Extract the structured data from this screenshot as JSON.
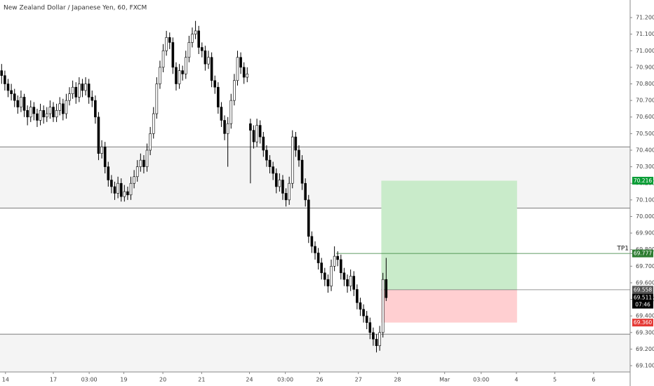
{
  "chart_data": {
    "type": "candlestick",
    "title": "New Zealand Dollar / Japanese Yen, 60, FXCM",
    "up_color": "#ffffff",
    "down_color": "#000000",
    "wick_color": "#000000",
    "ohlc": [
      [
        70.88,
        70.92,
        70.8,
        70.85
      ],
      [
        70.85,
        70.88,
        70.76,
        70.8
      ],
      [
        70.8,
        70.83,
        70.72,
        70.76
      ],
      [
        70.76,
        70.8,
        70.7,
        70.74
      ],
      [
        70.74,
        70.77,
        70.66,
        70.7
      ],
      [
        70.7,
        70.73,
        70.62,
        70.66
      ],
      [
        70.66,
        70.76,
        70.63,
        70.72
      ],
      [
        70.72,
        70.74,
        70.6,
        70.64
      ],
      [
        70.64,
        70.67,
        70.55,
        70.6
      ],
      [
        70.6,
        70.7,
        70.57,
        70.66
      ],
      [
        70.66,
        70.69,
        70.58,
        70.62
      ],
      [
        70.62,
        70.65,
        70.54,
        70.58
      ],
      [
        70.58,
        70.68,
        70.55,
        70.64
      ],
      [
        70.64,
        70.67,
        70.56,
        70.6
      ],
      [
        70.6,
        70.66,
        70.57,
        70.62
      ],
      [
        70.62,
        70.7,
        70.59,
        70.66
      ],
      [
        70.66,
        70.69,
        70.57,
        70.6
      ],
      [
        70.6,
        70.68,
        70.57,
        70.64
      ],
      [
        70.64,
        70.72,
        70.61,
        70.68
      ],
      [
        70.68,
        70.71,
        70.58,
        70.62
      ],
      [
        70.62,
        70.74,
        70.59,
        70.7
      ],
      [
        70.7,
        70.78,
        70.67,
        70.74
      ],
      [
        70.74,
        70.82,
        70.71,
        70.78
      ],
      [
        70.78,
        70.81,
        70.68,
        70.72
      ],
      [
        70.72,
        70.84,
        70.69,
        70.8
      ],
      [
        70.8,
        70.83,
        70.72,
        70.76
      ],
      [
        70.76,
        70.84,
        70.73,
        70.8
      ],
      [
        70.8,
        70.83,
        70.68,
        70.72
      ],
      [
        70.72,
        70.76,
        70.66,
        70.7
      ],
      [
        70.7,
        70.73,
        70.56,
        70.6
      ],
      [
        70.6,
        70.63,
        70.34,
        70.38
      ],
      [
        70.38,
        70.46,
        70.35,
        70.42
      ],
      [
        70.42,
        70.45,
        70.26,
        70.3
      ],
      [
        70.3,
        70.33,
        70.18,
        70.22
      ],
      [
        70.22,
        70.25,
        70.14,
        70.18
      ],
      [
        70.18,
        70.21,
        70.1,
        70.14
      ],
      [
        70.14,
        70.24,
        70.11,
        70.2
      ],
      [
        70.2,
        70.23,
        70.09,
        70.12
      ],
      [
        70.12,
        70.19,
        70.09,
        70.15
      ],
      [
        70.15,
        70.18,
        70.1,
        70.13
      ],
      [
        70.13,
        70.24,
        70.1,
        70.2
      ],
      [
        70.2,
        70.28,
        70.17,
        70.24
      ],
      [
        70.24,
        70.34,
        70.21,
        70.3
      ],
      [
        70.3,
        70.38,
        70.27,
        70.34
      ],
      [
        70.34,
        70.37,
        70.26,
        70.3
      ],
      [
        70.3,
        70.44,
        70.27,
        70.4
      ],
      [
        70.4,
        70.54,
        70.37,
        70.5
      ],
      [
        70.5,
        70.66,
        70.47,
        70.62
      ],
      [
        70.62,
        70.84,
        70.59,
        70.8
      ],
      [
        70.8,
        70.94,
        70.77,
        70.9
      ],
      [
        70.9,
        71.04,
        70.87,
        71.0
      ],
      [
        71.0,
        71.12,
        70.97,
        71.08
      ],
      [
        71.08,
        71.11,
        71.01,
        71.05
      ],
      [
        71.05,
        71.08,
        70.86,
        70.9
      ],
      [
        70.9,
        70.93,
        70.76,
        70.8
      ],
      [
        70.8,
        70.92,
        70.77,
        70.88
      ],
      [
        70.88,
        70.91,
        70.82,
        70.86
      ],
      [
        70.86,
        71.0,
        70.83,
        70.96
      ],
      [
        70.96,
        71.09,
        70.93,
        71.05
      ],
      [
        71.05,
        71.14,
        71.02,
        71.1
      ],
      [
        71.1,
        71.18,
        71.07,
        71.12
      ],
      [
        71.12,
        71.15,
        70.98,
        71.02
      ],
      [
        71.02,
        71.05,
        70.96,
        71.0
      ],
      [
        71.0,
        71.03,
        70.88,
        70.92
      ],
      [
        70.92,
        71.0,
        70.89,
        70.96
      ],
      [
        70.96,
        70.99,
        70.78,
        70.82
      ],
      [
        70.82,
        70.85,
        70.74,
        70.78
      ],
      [
        70.78,
        70.81,
        70.62,
        70.66
      ],
      [
        70.66,
        70.69,
        70.54,
        70.58
      ],
      [
        70.58,
        70.61,
        70.46,
        70.5
      ],
      [
        70.5,
        70.6,
        70.3,
        70.56
      ],
      [
        70.56,
        70.74,
        70.53,
        70.7
      ],
      [
        70.7,
        70.86,
        70.67,
        70.82
      ],
      [
        70.82,
        71.0,
        70.79,
        70.96
      ],
      [
        70.96,
        70.99,
        70.86,
        70.9
      ],
      [
        70.9,
        70.93,
        70.8,
        70.84
      ],
      [
        70.84,
        70.9,
        70.81,
        70.86
      ],
      [
        70.56,
        70.59,
        70.2,
        70.52
      ],
      [
        70.52,
        70.55,
        70.41,
        70.45
      ],
      [
        70.45,
        70.59,
        70.42,
        70.55
      ],
      [
        70.55,
        70.58,
        70.44,
        70.48
      ],
      [
        70.48,
        70.51,
        70.36,
        70.4
      ],
      [
        70.4,
        70.43,
        70.3,
        70.34
      ],
      [
        70.34,
        70.37,
        70.26,
        70.3
      ],
      [
        70.3,
        70.33,
        70.22,
        70.26
      ],
      [
        70.26,
        70.29,
        70.14,
        70.18
      ],
      [
        70.18,
        70.26,
        70.15,
        70.22
      ],
      [
        70.22,
        70.25,
        70.1,
        70.14
      ],
      [
        70.14,
        70.17,
        70.06,
        70.1
      ],
      [
        70.1,
        70.24,
        70.07,
        70.2
      ],
      [
        70.2,
        70.52,
        70.17,
        70.48
      ],
      [
        70.48,
        70.51,
        70.36,
        70.4
      ],
      [
        70.4,
        70.43,
        70.3,
        70.34
      ],
      [
        70.34,
        70.37,
        70.16,
        70.2
      ],
      [
        70.2,
        70.23,
        70.06,
        70.1
      ],
      [
        70.1,
        70.13,
        69.84,
        69.88
      ],
      [
        69.88,
        69.91,
        69.78,
        69.82
      ],
      [
        69.82,
        69.85,
        69.74,
        69.78
      ],
      [
        69.78,
        69.81,
        69.68,
        69.72
      ],
      [
        69.72,
        69.75,
        69.62,
        69.66
      ],
      [
        69.66,
        69.69,
        69.58,
        69.62
      ],
      [
        69.62,
        69.65,
        69.54,
        69.58
      ],
      [
        69.58,
        69.74,
        69.55,
        69.7
      ],
      [
        69.7,
        69.82,
        69.67,
        69.76
      ],
      [
        69.76,
        69.79,
        69.7,
        69.74
      ],
      [
        69.74,
        69.77,
        69.62,
        69.66
      ],
      [
        69.66,
        69.69,
        69.58,
        69.62
      ],
      [
        69.62,
        69.65,
        69.54,
        69.58
      ],
      [
        69.58,
        69.68,
        69.55,
        69.64
      ],
      [
        69.64,
        69.67,
        69.52,
        69.56
      ],
      [
        69.56,
        69.59,
        69.44,
        69.48
      ],
      [
        69.48,
        69.51,
        69.4,
        69.44
      ],
      [
        69.44,
        69.47,
        69.36,
        69.4
      ],
      [
        69.4,
        69.43,
        69.32,
        69.36
      ],
      [
        69.36,
        69.39,
        69.26,
        69.3
      ],
      [
        69.3,
        69.33,
        69.22,
        69.26
      ],
      [
        69.26,
        69.29,
        69.18,
        69.22
      ],
      [
        69.22,
        69.34,
        69.19,
        69.3
      ],
      [
        69.3,
        69.66,
        69.27,
        69.62
      ],
      [
        69.62,
        69.75,
        69.49,
        69.51
      ]
    ],
    "xlim": [
      0,
      195
    ],
    "xticks": [
      {
        "value": 1.7,
        "label": "14"
      },
      {
        "value": 16.5,
        "label": "17"
      },
      {
        "value": 27.6,
        "label": "03:00"
      },
      {
        "value": 38.3,
        "label": "19"
      },
      {
        "value": 50.4,
        "label": "20"
      },
      {
        "value": 62.4,
        "label": "21"
      },
      {
        "value": 77.2,
        "label": "24"
      },
      {
        "value": 88.3,
        "label": "03:00"
      },
      {
        "value": 98.9,
        "label": "26"
      },
      {
        "value": 110.9,
        "label": "27"
      },
      {
        "value": 123,
        "label": "28"
      },
      {
        "value": 137.6,
        "label": "Mar"
      },
      {
        "value": 148.9,
        "label": "03:00"
      },
      {
        "value": 159.8,
        "label": "4"
      },
      {
        "value": 171.7,
        "label": "5"
      },
      {
        "value": 183.7,
        "label": "6"
      }
    ],
    "ylim": [
      69.062,
      71.306
    ],
    "yticks": [
      {
        "value": 69.1,
        "label": "69.100"
      },
      {
        "value": 69.2,
        "label": "69.200"
      },
      {
        "value": 69.3,
        "label": "69.300"
      },
      {
        "value": 69.4,
        "label": "69.400"
      },
      {
        "value": 69.5,
        "label": "69.500"
      },
      {
        "value": 69.6,
        "label": "69.600"
      },
      {
        "value": 69.7,
        "label": "69.700"
      },
      {
        "value": 69.8,
        "label": "69.800"
      },
      {
        "value": 69.9,
        "label": "69.900"
      },
      {
        "value": 70.0,
        "label": "70.000"
      },
      {
        "value": 70.1,
        "label": "70.100"
      },
      {
        "value": 70.2,
        "label": "70.200"
      },
      {
        "value": 70.3,
        "label": "70.300"
      },
      {
        "value": 70.4,
        "label": "70.400"
      },
      {
        "value": 70.5,
        "label": "70.500"
      },
      {
        "value": 70.6,
        "label": "70.600"
      },
      {
        "value": 70.7,
        "label": "70.700"
      },
      {
        "value": 70.8,
        "label": "70.800"
      },
      {
        "value": 70.9,
        "label": "70.900"
      },
      {
        "value": 71.0,
        "label": "71.000"
      },
      {
        "value": 71.1,
        "label": "71.100"
      },
      {
        "value": 71.2,
        "label": "71.200"
      }
    ],
    "zones": [
      {
        "from": 70.42,
        "to": 70.05
      },
      {
        "from": 69.29,
        "to": 69.062
      }
    ],
    "position": {
      "start": 118,
      "end": 160,
      "entry": 69.558,
      "target": 70.216,
      "stop": 69.36
    },
    "tp_line": {
      "label": "TP1",
      "value": 69.777,
      "start": 104
    },
    "price_labels": [
      {
        "value": 70.216,
        "label": "70.216",
        "color": "#0a9d36"
      },
      {
        "value": 69.777,
        "label": "69.777",
        "color": "#2e7d32"
      },
      {
        "value": 69.558,
        "label": "69.558",
        "color": "#555555"
      },
      {
        "value": 69.511,
        "label": "69.511",
        "color": "#000000"
      },
      {
        "value": 69.468,
        "label": "07:46",
        "color": "#000000"
      },
      {
        "value": 69.36,
        "label": "69.360",
        "color": "#e53935"
      }
    ]
  }
}
